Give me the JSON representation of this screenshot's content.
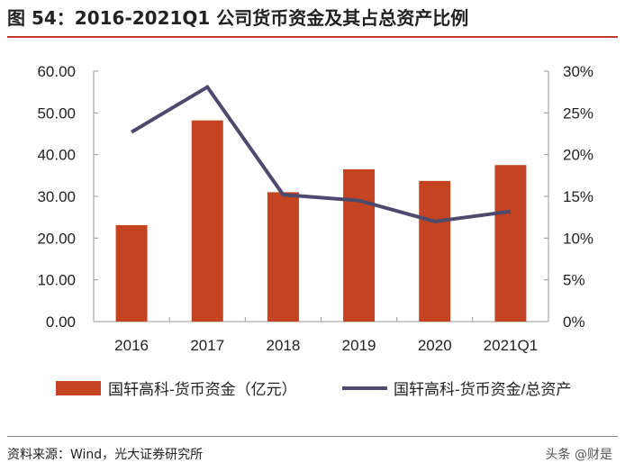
{
  "title": "图 54：2016-2021Q1 公司货币资金及其占总资产比例",
  "source": "资料来源：Wind，光大证券研究所",
  "watermark": "头条 @财是",
  "chart_data": {
    "type": "bar+line",
    "categories": [
      "2016",
      "2017",
      "2018",
      "2019",
      "2020",
      "2021Q1"
    ],
    "series": [
      {
        "name": "国轩高科-货币资金（亿元）",
        "type": "bar",
        "axis": "left",
        "color": "#c44422",
        "values": [
          23.1,
          48.2,
          31.0,
          36.5,
          33.7,
          37.5
        ]
      },
      {
        "name": "国轩高科-货币资金/总资产",
        "type": "line",
        "axis": "right",
        "color": "#4e4a6e",
        "values": [
          22.7,
          28.1,
          15.2,
          14.5,
          12.0,
          13.2
        ]
      }
    ],
    "left_axis": {
      "ylim": [
        0,
        60
      ],
      "ticks": [
        "0.00",
        "10.00",
        "20.00",
        "30.00",
        "40.00",
        "50.00",
        "60.00"
      ]
    },
    "right_axis": {
      "ylim": [
        0,
        30
      ],
      "ticks": [
        "0%",
        "5%",
        "10%",
        "15%",
        "20%",
        "25%",
        "30%"
      ]
    },
    "grid": false,
    "legend": "bottom"
  }
}
